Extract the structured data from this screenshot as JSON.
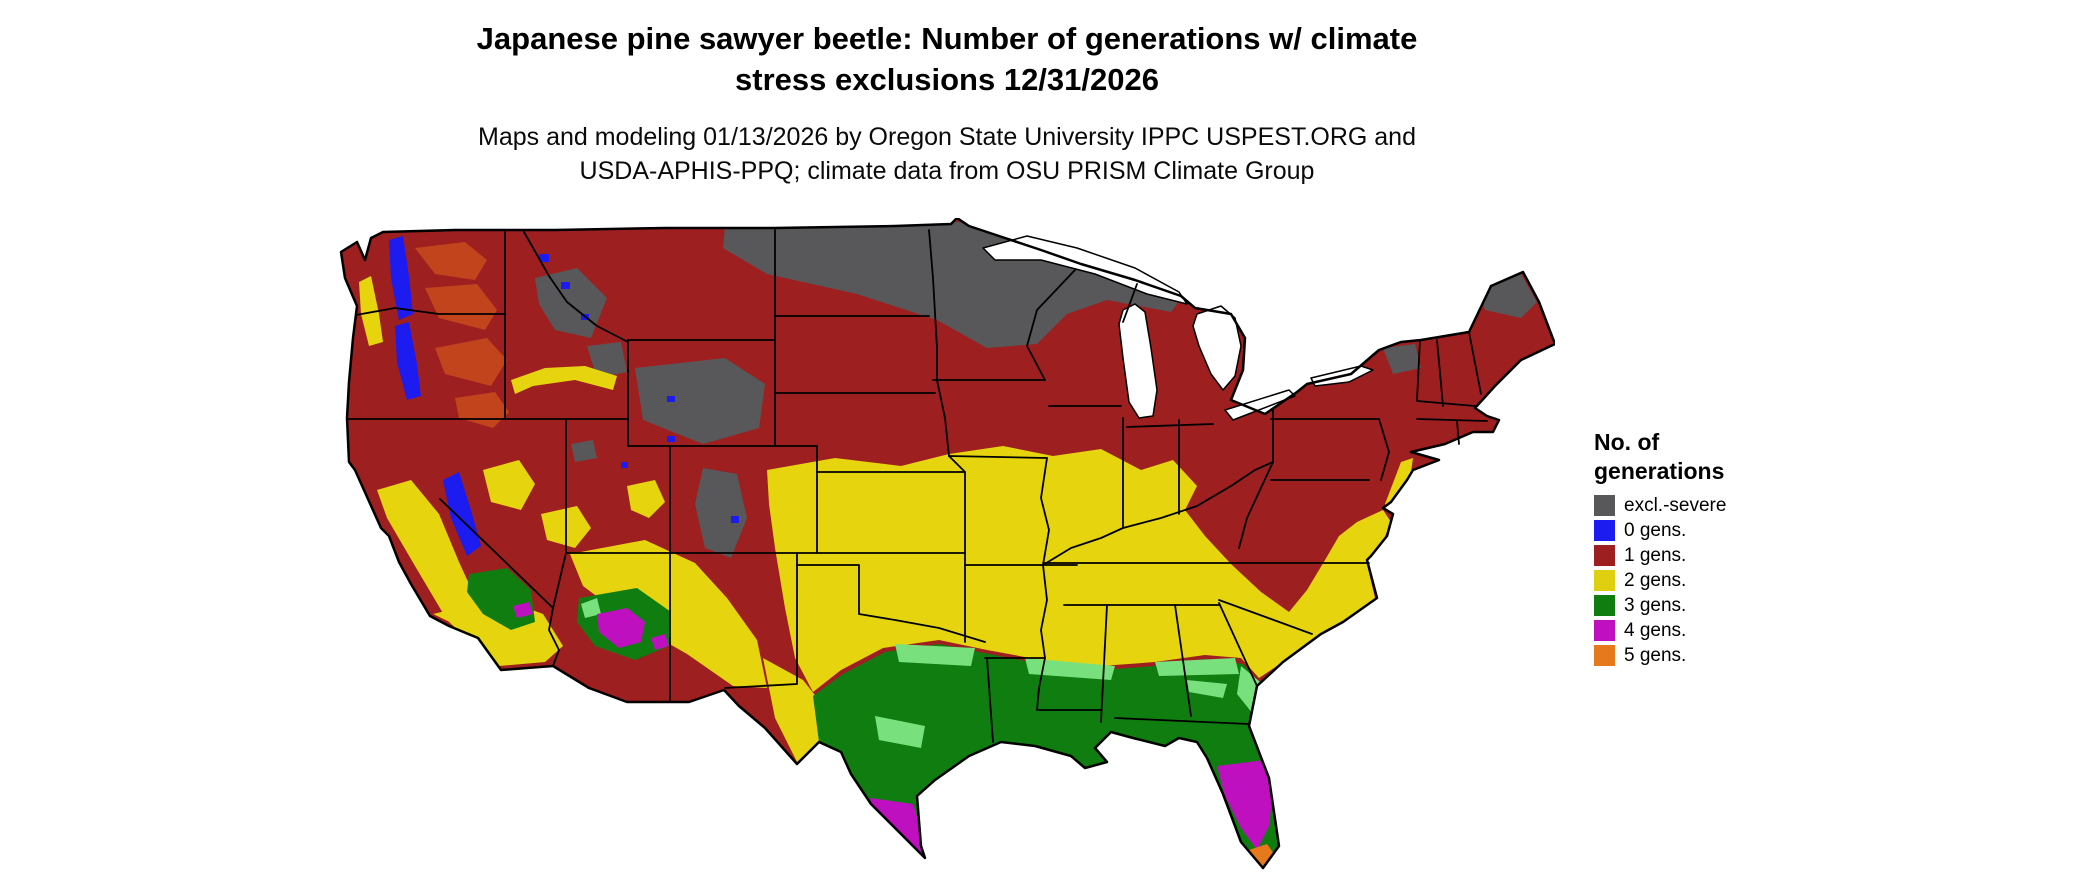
{
  "title": {
    "line1": "Japanese pine sawyer beetle: Number of generations w/ climate",
    "line2": "stress exclusions 12/31/2026"
  },
  "subtitle": {
    "line1": "Maps and modeling 01/13/2026 by Oregon State University IPPC USPEST.ORG and",
    "line2": "USDA-APHIS-PPQ; climate data from OSU PRISM Climate Group"
  },
  "legend": {
    "title_line1": "No. of",
    "title_line2": "generations",
    "items": [
      {
        "label": "excl.-severe",
        "color": "#58585a"
      },
      {
        "label": "0 gens.",
        "color": "#1c1cf0"
      },
      {
        "label": "1 gens.",
        "color": "#9e1f1f"
      },
      {
        "label": "2 gens.",
        "color": "#e0ce10"
      },
      {
        "label": "3 gens.",
        "color": "#0f7d0f"
      },
      {
        "label": "4 gens.",
        "color": "#bf10bf"
      },
      {
        "label": "5 gens.",
        "color": "#e5791c"
      }
    ]
  },
  "map": {
    "region": "Continental United States",
    "kind": "choropleth raster map with state boundaries",
    "palette": {
      "excl_severe": "#58585a",
      "gens0": "#1c1cf0",
      "gens1": "#9e1f1f",
      "gens1_warm": "#c2441c",
      "gens2": "#e6d40e",
      "gens3": "#0f7d0f",
      "gens3_light": "#79e07e",
      "gens4": "#bf10bf",
      "gens5": "#e5791c",
      "water": "#ffffff",
      "border": "#000000"
    },
    "zones": [
      {
        "class": "excl.-severe",
        "areas": "Northern Plains (North Dakota, Minnesota, northern Wisconsin, upper Michigan), Wyoming, Colorado Rockies, Idaho-Montana mountains, northern Maine, Adirondacks"
      },
      {
        "class": "0 gens.",
        "areas": "Cascades of Washington and Oregon, Sierra Nevada, scattered high northern Rockies"
      },
      {
        "class": "1 gens.",
        "areas": "Pacific Northwest, Great Basin, Montana, northern Plains, Midwest, Great Lakes states, Northeast, central Appalachians"
      },
      {
        "class": "2 gens.",
        "areas": "California valleys, Southwest plateaus, central Plains (Kansas, Oklahoma, Missouri), mid-South (Tennessee, Arkansas), Virginia-Carolinas piedmont, mid-Atlantic coast"
      },
      {
        "class": "3 gens.",
        "areas": "Central and east Texas, Gulf Coast states, Georgia, coastal Carolinas, northern Florida, southern Arizona, southern California"
      },
      {
        "class": "4 gens.",
        "areas": "South Texas, central Florida, desert southern Arizona"
      },
      {
        "class": "5 gens.",
        "areas": "Southern tip of Florida"
      }
    ]
  }
}
